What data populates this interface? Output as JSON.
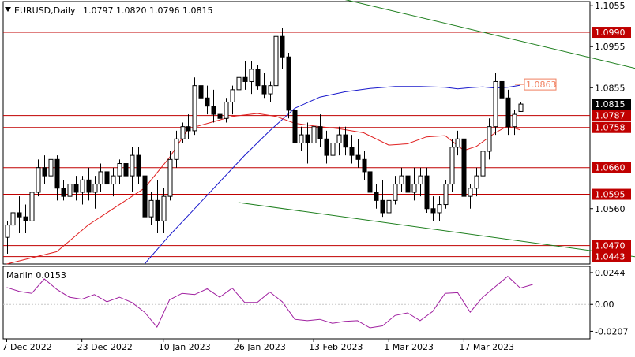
{
  "chart_data": {
    "type": "candlestick",
    "header": {
      "symbol_timeframe": "EURUSD,Daily",
      "ohlc": "1.0797 1.0820 1.0796 1.0815"
    },
    "price_axis": {
      "range": [
        1.0425,
        1.1065
      ],
      "tick_labels": [
        "1.1055",
        "1.0955",
        "1.0855",
        "1.0560"
      ],
      "tick_values": [
        1.1055,
        1.0955,
        1.0855,
        1.056
      ]
    },
    "time_axis": {
      "labels": [
        "7 Dec 2022",
        "23 Dec 2022",
        "10 Jan 2023",
        "26 Jan 2023",
        "13 Feb 2023",
        "1 Mar 2023",
        "17 Mar 2023"
      ],
      "label_bar_index": [
        0,
        12,
        25,
        37,
        49,
        61,
        73
      ]
    },
    "colors": {
      "up": "#ffffff",
      "down": "#000000",
      "level_lines": "#c00000",
      "level_label_bg": "#c00000",
      "channel": "#1e7f1e",
      "fast_ma": "#e02020",
      "slow_ma": "#1a1acc",
      "oscillator": "#a020a0",
      "target_label": "#f08060",
      "current_price_bg": "#000000"
    },
    "levels": [
      {
        "value": 1.099,
        "label": "1.0990"
      },
      {
        "value": 1.0787,
        "label": "1.0787"
      },
      {
        "value": 1.0758,
        "label": "1.0758"
      },
      {
        "value": 1.066,
        "label": "1.0660"
      },
      {
        "value": 1.0595,
        "label": "1.0595"
      },
      {
        "value": 1.047,
        "label": "1.0470"
      },
      {
        "value": 1.0443,
        "label": "1.0443"
      }
    ],
    "current_price": {
      "value": 1.0815,
      "label": "1.0815"
    },
    "target": {
      "value": 1.0863,
      "label": "1.0863"
    },
    "channel": {
      "upper": [
        [
          36,
          1.1135
        ],
        [
          104,
          1.0889
        ]
      ],
      "lower": [
        [
          37,
          1.0575
        ],
        [
          104,
          1.0435
        ]
      ]
    },
    "candles": [
      [
        1.049,
        1.053,
        1.045,
        1.052
      ],
      [
        1.052,
        1.056,
        1.048,
        1.055
      ],
      [
        1.055,
        1.059,
        1.05,
        1.054
      ],
      [
        1.054,
        1.057,
        1.05,
        1.053
      ],
      [
        1.053,
        1.061,
        1.052,
        1.06
      ],
      [
        1.06,
        1.068,
        1.059,
        1.066
      ],
      [
        1.066,
        1.069,
        1.062,
        1.064
      ],
      [
        1.064,
        1.07,
        1.062,
        1.068
      ],
      [
        1.068,
        1.069,
        1.058,
        1.061
      ],
      [
        1.061,
        1.063,
        1.058,
        1.059
      ],
      [
        1.059,
        1.063,
        1.057,
        1.062
      ],
      [
        1.062,
        1.064,
        1.058,
        1.06
      ],
      [
        1.06,
        1.064,
        1.057,
        1.063
      ],
      [
        1.063,
        1.066,
        1.058,
        1.06
      ],
      [
        1.06,
        1.064,
        1.056,
        1.062
      ],
      [
        1.062,
        1.067,
        1.06,
        1.065
      ],
      [
        1.065,
        1.067,
        1.06,
        1.062
      ],
      [
        1.062,
        1.066,
        1.059,
        1.064
      ],
      [
        1.064,
        1.068,
        1.062,
        1.067
      ],
      [
        1.067,
        1.069,
        1.063,
        1.064
      ],
      [
        1.064,
        1.071,
        1.06,
        1.069
      ],
      [
        1.069,
        1.071,
        1.062,
        1.064
      ],
      [
        1.064,
        1.066,
        1.052,
        1.054
      ],
      [
        1.054,
        1.06,
        1.052,
        1.058
      ],
      [
        1.058,
        1.063,
        1.05,
        1.053
      ],
      [
        1.053,
        1.061,
        1.05,
        1.059
      ],
      [
        1.059,
        1.07,
        1.058,
        1.068
      ],
      [
        1.068,
        1.075,
        1.066,
        1.073
      ],
      [
        1.073,
        1.077,
        1.072,
        1.076
      ],
      [
        1.076,
        1.079,
        1.073,
        1.075
      ],
      [
        1.075,
        1.088,
        1.074,
        1.086
      ],
      [
        1.086,
        1.087,
        1.08,
        1.083
      ],
      [
        1.083,
        1.086,
        1.079,
        1.081
      ],
      [
        1.081,
        1.085,
        1.077,
        1.079
      ],
      [
        1.079,
        1.083,
        1.076,
        1.078
      ],
      [
        1.078,
        1.083,
        1.077,
        1.082
      ],
      [
        1.082,
        1.086,
        1.079,
        1.085
      ],
      [
        1.085,
        1.09,
        1.082,
        1.088
      ],
      [
        1.088,
        1.092,
        1.085,
        1.087
      ],
      [
        1.087,
        1.092,
        1.084,
        1.09
      ],
      [
        1.09,
        1.091,
        1.085,
        1.086
      ],
      [
        1.086,
        1.089,
        1.083,
        1.084
      ],
      [
        1.084,
        1.087,
        1.082,
        1.086
      ],
      [
        1.086,
        1.1,
        1.085,
        1.098
      ],
      [
        1.098,
        1.1,
        1.09,
        1.093
      ],
      [
        1.093,
        1.094,
        1.078,
        1.08
      ],
      [
        1.08,
        1.083,
        1.07,
        1.072
      ],
      [
        1.072,
        1.076,
        1.07,
        1.074
      ],
      [
        1.074,
        1.077,
        1.067,
        1.072
      ],
      [
        1.072,
        1.079,
        1.07,
        1.076
      ],
      [
        1.076,
        1.079,
        1.071,
        1.073
      ],
      [
        1.073,
        1.075,
        1.067,
        1.069
      ],
      [
        1.069,
        1.074,
        1.068,
        1.072
      ],
      [
        1.072,
        1.076,
        1.069,
        1.074
      ],
      [
        1.074,
        1.076,
        1.069,
        1.071
      ],
      [
        1.071,
        1.074,
        1.067,
        1.069
      ],
      [
        1.069,
        1.073,
        1.066,
        1.068
      ],
      [
        1.068,
        1.07,
        1.063,
        1.065
      ],
      [
        1.065,
        1.066,
        1.059,
        1.06
      ],
      [
        1.06,
        1.062,
        1.056,
        1.058
      ],
      [
        1.058,
        1.063,
        1.054,
        1.055
      ],
      [
        1.055,
        1.06,
        1.053,
        1.058
      ],
      [
        1.058,
        1.064,
        1.057,
        1.062
      ],
      [
        1.062,
        1.066,
        1.06,
        1.064
      ],
      [
        1.064,
        1.067,
        1.058,
        1.06
      ],
      [
        1.06,
        1.066,
        1.058,
        1.062
      ],
      [
        1.062,
        1.066,
        1.059,
        1.064
      ],
      [
        1.064,
        1.066,
        1.055,
        1.056
      ],
      [
        1.056,
        1.059,
        1.053,
        1.055
      ],
      [
        1.055,
        1.059,
        1.053,
        1.057
      ],
      [
        1.057,
        1.063,
        1.056,
        1.062
      ],
      [
        1.062,
        1.073,
        1.06,
        1.071
      ],
      [
        1.071,
        1.075,
        1.069,
        1.073
      ],
      [
        1.073,
        1.076,
        1.057,
        1.059
      ],
      [
        1.059,
        1.062,
        1.056,
        1.061
      ],
      [
        1.061,
        1.066,
        1.059,
        1.064
      ],
      [
        1.064,
        1.072,
        1.062,
        1.07
      ],
      [
        1.07,
        1.078,
        1.068,
        1.076
      ],
      [
        1.076,
        1.089,
        1.074,
        1.087
      ],
      [
        1.087,
        1.093,
        1.08,
        1.083
      ],
      [
        1.083,
        1.085,
        1.074,
        1.076
      ],
      [
        1.076,
        1.08,
        1.074,
        1.079
      ],
      [
        1.0797,
        1.082,
        1.0796,
        1.0815
      ]
    ],
    "ma_fast": [
      [
        0,
        1.0425
      ],
      [
        8,
        1.0455
      ],
      [
        13,
        1.052
      ],
      [
        18,
        1.057
      ],
      [
        22,
        1.061
      ],
      [
        26,
        1.0685
      ],
      [
        29,
        1.0755
      ],
      [
        33,
        1.0772
      ],
      [
        36,
        1.0785
      ],
      [
        40,
        1.0792
      ],
      [
        43,
        1.0785
      ],
      [
        46,
        1.0768
      ],
      [
        49,
        1.0762
      ],
      [
        53,
        1.0755
      ],
      [
        57,
        1.0745
      ],
      [
        61,
        1.0715
      ],
      [
        64,
        1.0718
      ],
      [
        67,
        1.0735
      ],
      [
        70,
        1.0738
      ],
      [
        73,
        1.0702
      ],
      [
        75,
        1.0712
      ],
      [
        78,
        1.0745
      ],
      [
        80,
        1.0762
      ],
      [
        82,
        1.0752
      ]
    ],
    "ma_slow": [
      [
        22,
        1.0425
      ],
      [
        26,
        1.0495
      ],
      [
        30,
        1.056
      ],
      [
        34,
        1.0625
      ],
      [
        38,
        1.069
      ],
      [
        42,
        1.075
      ],
      [
        46,
        1.0805
      ],
      [
        50,
        1.0832
      ],
      [
        54,
        1.0845
      ],
      [
        58,
        1.0853
      ],
      [
        62,
        1.0858
      ],
      [
        66,
        1.0858
      ],
      [
        70,
        1.0856
      ],
      [
        72,
        1.0852
      ],
      [
        74,
        1.0855
      ],
      [
        76,
        1.0857
      ],
      [
        78,
        1.0854
      ],
      [
        80,
        1.0856
      ],
      [
        82,
        1.0861
      ]
    ],
    "oscillator": {
      "name": "Marlin 0.0153",
      "range": [
        -0.0265,
        0.0292
      ],
      "tick_labels": [
        "0.0244",
        "0.00",
        "-0.0207"
      ],
      "tick_values": [
        0.0244,
        0.0,
        -0.0207
      ],
      "values": [
        [
          0,
          0.013
        ],
        [
          2,
          0.01
        ],
        [
          4,
          0.0085
        ],
        [
          6,
          0.0195
        ],
        [
          8,
          0.0115
        ],
        [
          10,
          0.0055
        ],
        [
          12,
          0.004
        ],
        [
          14,
          0.0075
        ],
        [
          16,
          0.002
        ],
        [
          18,
          0.0055
        ],
        [
          20,
          0.0015
        ],
        [
          22,
          -0.006
        ],
        [
          24,
          -0.0175
        ],
        [
          26,
          0.0035
        ],
        [
          28,
          0.0085
        ],
        [
          30,
          0.0075
        ],
        [
          32,
          0.012
        ],
        [
          34,
          0.0055
        ],
        [
          36,
          0.0125
        ],
        [
          38,
          0.0015
        ],
        [
          40,
          0.0015
        ],
        [
          42,
          0.0095
        ],
        [
          44,
          0.002
        ],
        [
          46,
          -0.0115
        ],
        [
          48,
          -0.0125
        ],
        [
          50,
          -0.0115
        ],
        [
          52,
          -0.0145
        ],
        [
          54,
          -0.013
        ],
        [
          56,
          -0.0125
        ],
        [
          58,
          -0.018
        ],
        [
          60,
          -0.0165
        ],
        [
          62,
          -0.0085
        ],
        [
          64,
          -0.0065
        ],
        [
          66,
          -0.0125
        ],
        [
          68,
          -0.0055
        ],
        [
          70,
          0.0085
        ],
        [
          72,
          0.009
        ],
        [
          74,
          -0.006
        ],
        [
          76,
          0.0055
        ],
        [
          78,
          0.0135
        ],
        [
          80,
          0.0215
        ],
        [
          82,
          0.0125
        ],
        [
          84,
          0.0153
        ]
      ]
    }
  }
}
